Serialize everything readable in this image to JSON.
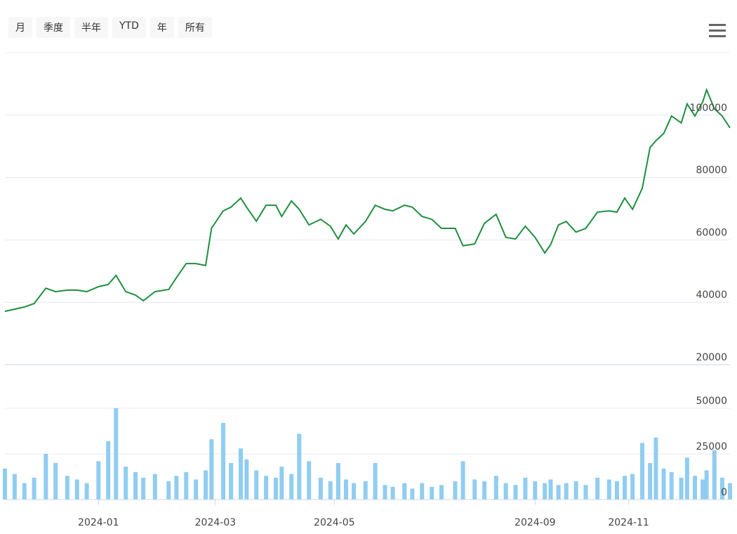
{
  "toolbar": {
    "buttons": [
      "月",
      "季度",
      "半年",
      "YTD",
      "年",
      "所有"
    ]
  },
  "chart_data": [
    {
      "type": "line",
      "color": "#1e8f3e",
      "x": [
        0,
        5,
        10,
        15,
        21,
        26,
        32,
        37,
        42,
        48,
        53,
        57,
        62,
        67,
        71,
        77,
        84,
        88,
        93,
        98,
        103,
        106,
        112,
        116,
        121,
        124,
        129,
        134,
        139,
        142,
        147,
        151,
        156,
        162,
        167,
        171,
        175,
        179,
        185,
        190,
        195,
        199,
        205,
        209,
        214,
        219,
        224,
        231,
        235,
        241,
        246,
        252,
        257,
        262,
        267,
        272,
        277,
        280,
        284,
        288,
        293,
        298,
        304,
        310,
        314,
        318,
        322,
        327,
        331,
        334,
        338,
        342,
        347,
        350,
        354,
        358,
        360,
        364,
        368,
        372
      ],
      "values": [
        37100,
        37800,
        38500,
        39600,
        44500,
        43400,
        43900,
        43900,
        43400,
        45000,
        45700,
        48600,
        43400,
        42300,
        40500,
        43400,
        44100,
        47900,
        52400,
        52400,
        51800,
        63700,
        69300,
        70500,
        73400,
        70500,
        66000,
        71100,
        71100,
        67500,
        72500,
        69800,
        64800,
        66600,
        64400,
        60300,
        64800,
        61900,
        65900,
        71100,
        69800,
        69300,
        71100,
        70500,
        67500,
        66600,
        63700,
        63700,
        58100,
        58700,
        65300,
        68200,
        60800,
        60300,
        64400,
        60800,
        55800,
        58500,
        64800,
        65900,
        62500,
        63700,
        68900,
        69300,
        68900,
        73400,
        69800,
        76500,
        89600,
        91800,
        94100,
        99700,
        97500,
        103600,
        99700,
        104200,
        108100,
        102000,
        99700,
        95900
      ],
      "xlim": [
        0,
        372
      ],
      "ylim": [
        20000,
        120000
      ],
      "yticks": [
        20000,
        40000,
        60000,
        80000,
        100000
      ],
      "grid": true
    },
    {
      "type": "bar",
      "color": "#7cc4ee",
      "x": [
        0,
        5,
        10,
        15,
        21,
        26,
        32,
        37,
        42,
        48,
        53,
        57,
        62,
        67,
        71,
        77,
        84,
        88,
        93,
        98,
        103,
        106,
        112,
        116,
        121,
        124,
        129,
        134,
        139,
        142,
        147,
        151,
        156,
        162,
        167,
        171,
        175,
        179,
        185,
        190,
        195,
        199,
        205,
        209,
        214,
        219,
        224,
        231,
        235,
        241,
        246,
        252,
        257,
        262,
        267,
        272,
        277,
        280,
        284,
        288,
        293,
        298,
        304,
        310,
        314,
        318,
        322,
        327,
        331,
        334,
        338,
        342,
        347,
        350,
        354,
        358,
        360,
        364,
        368,
        372
      ],
      "values": [
        17000,
        14000,
        9000,
        12000,
        25000,
        20000,
        13000,
        11000,
        9000,
        21000,
        32000,
        50000,
        18000,
        15000,
        12000,
        14000,
        10000,
        13000,
        15000,
        11000,
        16000,
        33000,
        42000,
        20000,
        28000,
        22000,
        16000,
        13000,
        12000,
        18000,
        14000,
        36000,
        21000,
        12000,
        10000,
        20000,
        11000,
        9000,
        10000,
        20000,
        8000,
        7000,
        9000,
        6000,
        9000,
        7000,
        8000,
        10000,
        21000,
        11000,
        10000,
        13000,
        9000,
        8000,
        12000,
        10000,
        9000,
        11000,
        8000,
        9000,
        10000,
        8000,
        12000,
        11000,
        10000,
        13000,
        14000,
        31000,
        20000,
        34000,
        17000,
        15000,
        12000,
        23000,
        13000,
        11000,
        16000,
        27000,
        12000,
        9000
      ],
      "xlim": [
        0,
        372
      ],
      "ylim": [
        0,
        55000
      ],
      "yticks": [
        0,
        25000,
        50000
      ],
      "grid": true,
      "xticks": [
        {
          "value": 48,
          "label": "2024-01"
        },
        {
          "value": 108,
          "label": "2024-03"
        },
        {
          "value": 169,
          "label": "2024-05"
        },
        {
          "value": 272,
          "label": "2024-09"
        },
        {
          "value": 320,
          "label": "2024-11"
        }
      ]
    }
  ]
}
